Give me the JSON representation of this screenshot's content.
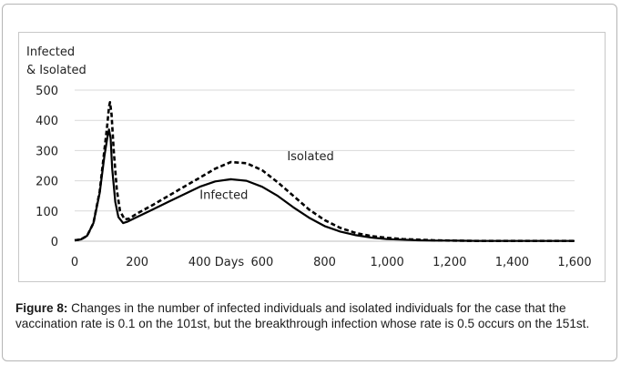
{
  "chart_data": {
    "type": "line",
    "ylabel_lines": [
      "Infected",
      "& Isolated"
    ],
    "xlabel": "Days",
    "xlim": [
      0,
      1600
    ],
    "ylim": [
      0,
      500
    ],
    "yticks": [
      0,
      100,
      200,
      300,
      400,
      500
    ],
    "ytick_labels": [
      "0",
      "100",
      "200",
      "300",
      "400",
      "500"
    ],
    "xticks": [
      0,
      200,
      400,
      600,
      800,
      1000,
      1200,
      1400,
      1600
    ],
    "xtick_labels": [
      "0",
      "200",
      "400",
      "600",
      "800",
      "1,000",
      "1,200",
      "1,400",
      "1,600"
    ],
    "grid": "horizontal",
    "series": [
      {
        "name": "Infected",
        "style": "solid",
        "color": "#000000",
        "x": [
          0,
          20,
          40,
          60,
          80,
          95,
          105,
          110,
          115,
          120,
          130,
          140,
          155,
          170,
          200,
          250,
          300,
          350,
          400,
          450,
          500,
          550,
          600,
          650,
          700,
          750,
          800,
          850,
          900,
          950,
          1000,
          1050,
          1100,
          1150,
          1200,
          1300,
          1400,
          1500,
          1600
        ],
        "y": [
          3,
          6,
          18,
          60,
          160,
          280,
          345,
          370,
          340,
          240,
          130,
          80,
          60,
          65,
          80,
          105,
          130,
          155,
          180,
          198,
          205,
          200,
          180,
          150,
          112,
          78,
          50,
          32,
          20,
          12,
          7,
          5,
          3,
          2,
          2,
          1,
          1,
          1,
          1
        ]
      },
      {
        "name": "Isolated",
        "style": "dashed",
        "color": "#000000",
        "x": [
          0,
          20,
          40,
          60,
          80,
          95,
          105,
          110,
          113,
          118,
          125,
          135,
          145,
          160,
          175,
          200,
          250,
          300,
          350,
          400,
          450,
          500,
          550,
          600,
          650,
          700,
          750,
          800,
          850,
          900,
          950,
          1000,
          1050,
          1100,
          1150,
          1200,
          1300,
          1400,
          1500,
          1600
        ],
        "y": [
          3,
          6,
          18,
          60,
          165,
          300,
          390,
          445,
          460,
          420,
          300,
          170,
          100,
          72,
          75,
          92,
          120,
          150,
          180,
          210,
          240,
          262,
          258,
          235,
          195,
          150,
          105,
          70,
          44,
          27,
          17,
          11,
          7,
          5,
          3,
          2,
          1,
          1,
          1,
          1
        ]
      }
    ],
    "annotations": [
      {
        "text": "Isolated",
        "x": 680,
        "y": 268
      },
      {
        "text": "Infected",
        "x": 400,
        "y": 140
      }
    ]
  },
  "caption": {
    "label": "Figure 8:",
    "text": " Changes in the number of infected individuals and isolated individuals for the case that the vaccination rate is 0.1 on the 101st, but the breakthrough infection whose rate is 0.5 occurs on the 151st."
  }
}
